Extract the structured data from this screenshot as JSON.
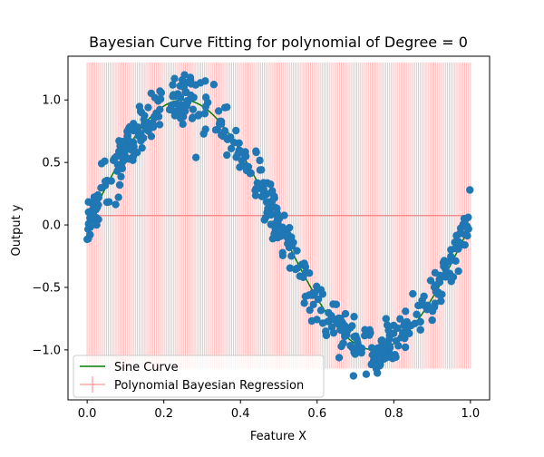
{
  "chart_data": {
    "type": "scatter",
    "title": "Bayesian Curve Fitting for polynomial of Degree = 0",
    "xlabel": "Feature X",
    "ylabel": "Output y",
    "xlim": [
      -0.05,
      1.05
    ],
    "ylim": [
      -1.4,
      1.35
    ],
    "xticks": [
      0.0,
      0.2,
      0.4,
      0.6,
      0.8,
      1.0
    ],
    "xtick_labels": [
      "0.0",
      "0.2",
      "0.4",
      "0.6",
      "0.8",
      "1.0"
    ],
    "yticks": [
      -1.0,
      -0.5,
      0.0,
      0.5,
      1.0
    ],
    "ytick_labels": [
      "−1.0",
      "−0.5",
      "0.0",
      "0.5",
      "1.0"
    ],
    "grid": false,
    "legend_position": "lower-left",
    "colors": {
      "scatter": "#1f77b4",
      "sine": "#008000",
      "regression": "#ff9896",
      "errorbar": "#ffb3b3"
    },
    "series": [
      {
        "name": "Sine Curve",
        "kind": "line",
        "function": "sin(2*pi*x)",
        "x_range": [
          0,
          1
        ]
      },
      {
        "name": "Polynomial Bayesian Regression",
        "kind": "errorbar",
        "x_range": [
          0,
          1
        ],
        "mean": 0.075,
        "upper": 1.3,
        "lower": -1.15
      },
      {
        "name": "",
        "kind": "scatter",
        "n_points": 500,
        "noise": 0.1,
        "x_range": [
          0,
          1
        ],
        "seed": 7
      }
    ]
  }
}
